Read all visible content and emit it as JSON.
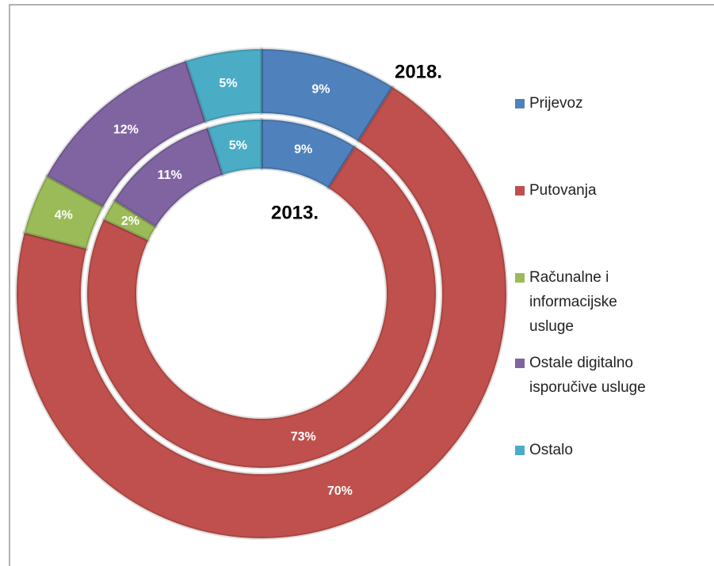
{
  "chart_data": {
    "type": "doughnut",
    "categories": [
      "Prijevoz",
      "Putovanja",
      "Računalne i informacijske usluge",
      "Ostale digitalno isporučive usluge",
      "Ostalo"
    ],
    "colors": [
      "#4f81bd",
      "#c0504d",
      "#9bbb59",
      "#8064a2",
      "#4bacc6"
    ],
    "series": [
      {
        "name": "2018.",
        "values": [
          9,
          70,
          4,
          12,
          5
        ],
        "value_labels": [
          "9%",
          "70%",
          "4%",
          "12%",
          "5%"
        ]
      },
      {
        "name": "2013.",
        "values": [
          9,
          73,
          2,
          11,
          5
        ],
        "value_labels": [
          "9%",
          "73%",
          "2%",
          "11%",
          "5%"
        ]
      }
    ],
    "legend": "right"
  }
}
